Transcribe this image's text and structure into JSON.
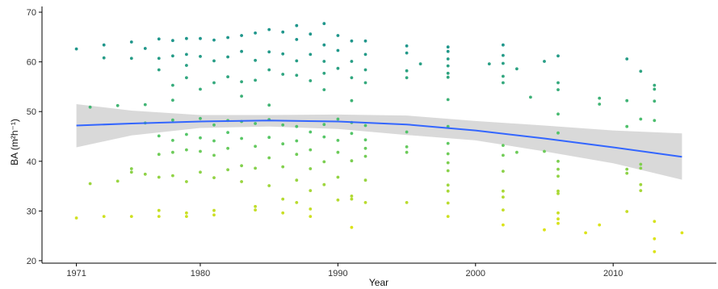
{
  "chart_data": {
    "type": "scatter",
    "title": "",
    "xlabel": "Year",
    "ylabel": "BA (m²h⁻¹)",
    "xlim": [
      1968.5,
      2017.5
    ],
    "ylim": [
      19.5,
      70.5
    ],
    "x_ticks": [
      1971,
      1980,
      1990,
      2000,
      2010
    ],
    "y_ticks": [
      20,
      30,
      40,
      50,
      60,
      70
    ],
    "grid": false,
    "legend": "none",
    "colors": {
      "low": "#dce319",
      "mid": "#55c667",
      "high": "#1f968b",
      "smooth_line": "#3366ff",
      "confidence_band": "#cccccc",
      "axis": "#000000"
    },
    "points": [
      {
        "x": 1971,
        "y": 62.6
      },
      {
        "x": 1971,
        "y": 28.6
      },
      {
        "x": 1972,
        "y": 50.9
      },
      {
        "x": 1972,
        "y": 35.5
      },
      {
        "x": 1973,
        "y": 63.4
      },
      {
        "x": 1973,
        "y": 60.8
      },
      {
        "x": 1973,
        "y": 28.9
      },
      {
        "x": 1974,
        "y": 51.2
      },
      {
        "x": 1974,
        "y": 36.0
      },
      {
        "x": 1975,
        "y": 64.0
      },
      {
        "x": 1975,
        "y": 60.7
      },
      {
        "x": 1975,
        "y": 38.5
      },
      {
        "x": 1975,
        "y": 37.8
      },
      {
        "x": 1975,
        "y": 28.9
      },
      {
        "x": 1976,
        "y": 62.7
      },
      {
        "x": 1976,
        "y": 51.4
      },
      {
        "x": 1976,
        "y": 47.7
      },
      {
        "x": 1976,
        "y": 37.4
      },
      {
        "x": 1977,
        "y": 64.6
      },
      {
        "x": 1977,
        "y": 60.7
      },
      {
        "x": 1977,
        "y": 58.4
      },
      {
        "x": 1977,
        "y": 45.1
      },
      {
        "x": 1977,
        "y": 41.4
      },
      {
        "x": 1977,
        "y": 36.8
      },
      {
        "x": 1977,
        "y": 30.1
      },
      {
        "x": 1977,
        "y": 28.9
      },
      {
        "x": 1978,
        "y": 64.3
      },
      {
        "x": 1978,
        "y": 61.2
      },
      {
        "x": 1978,
        "y": 55.3
      },
      {
        "x": 1978,
        "y": 52.3
      },
      {
        "x": 1978,
        "y": 48.3
      },
      {
        "x": 1978,
        "y": 44.2
      },
      {
        "x": 1978,
        "y": 41.8
      },
      {
        "x": 1978,
        "y": 37.1
      },
      {
        "x": 1979,
        "y": 64.7
      },
      {
        "x": 1979,
        "y": 61.5
      },
      {
        "x": 1979,
        "y": 59.3
      },
      {
        "x": 1979,
        "y": 56.8
      },
      {
        "x": 1979,
        "y": 45.4
      },
      {
        "x": 1979,
        "y": 42.3
      },
      {
        "x": 1979,
        "y": 35.9
      },
      {
        "x": 1979,
        "y": 29.6
      },
      {
        "x": 1979,
        "y": 28.9
      },
      {
        "x": 1980,
        "y": 64.7
      },
      {
        "x": 1980,
        "y": 61.1
      },
      {
        "x": 1980,
        "y": 54.5
      },
      {
        "x": 1980,
        "y": 48.6
      },
      {
        "x": 1980,
        "y": 44.7
      },
      {
        "x": 1980,
        "y": 42.0
      },
      {
        "x": 1980,
        "y": 37.8
      },
      {
        "x": 1981,
        "y": 64.4
      },
      {
        "x": 1981,
        "y": 60.2
      },
      {
        "x": 1981,
        "y": 55.8
      },
      {
        "x": 1981,
        "y": 47.3
      },
      {
        "x": 1981,
        "y": 44.1
      },
      {
        "x": 1981,
        "y": 41.2
      },
      {
        "x": 1981,
        "y": 36.7
      },
      {
        "x": 1981,
        "y": 30.1
      },
      {
        "x": 1981,
        "y": 29.2
      },
      {
        "x": 1982,
        "y": 64.9
      },
      {
        "x": 1982,
        "y": 61.0
      },
      {
        "x": 1982,
        "y": 57.0
      },
      {
        "x": 1982,
        "y": 48.2
      },
      {
        "x": 1982,
        "y": 45.8
      },
      {
        "x": 1982,
        "y": 42.6
      },
      {
        "x": 1982,
        "y": 38.3
      },
      {
        "x": 1983,
        "y": 65.3
      },
      {
        "x": 1983,
        "y": 62.1
      },
      {
        "x": 1983,
        "y": 56.0
      },
      {
        "x": 1983,
        "y": 53.1
      },
      {
        "x": 1983,
        "y": 48.0
      },
      {
        "x": 1983,
        "y": 44.6
      },
      {
        "x": 1983,
        "y": 39.1
      },
      {
        "x": 1983,
        "y": 35.9
      },
      {
        "x": 1984,
        "y": 65.8
      },
      {
        "x": 1984,
        "y": 60.3
      },
      {
        "x": 1984,
        "y": 56.3
      },
      {
        "x": 1984,
        "y": 47.6
      },
      {
        "x": 1984,
        "y": 43.0
      },
      {
        "x": 1984,
        "y": 38.6
      },
      {
        "x": 1984,
        "y": 30.9
      },
      {
        "x": 1984,
        "y": 30.2
      },
      {
        "x": 1985,
        "y": 66.5
      },
      {
        "x": 1985,
        "y": 62.0
      },
      {
        "x": 1985,
        "y": 58.4
      },
      {
        "x": 1985,
        "y": 51.3
      },
      {
        "x": 1985,
        "y": 48.4
      },
      {
        "x": 1985,
        "y": 44.8
      },
      {
        "x": 1985,
        "y": 40.7
      },
      {
        "x": 1985,
        "y": 35.1
      },
      {
        "x": 1986,
        "y": 66.0
      },
      {
        "x": 1986,
        "y": 61.6
      },
      {
        "x": 1986,
        "y": 57.5
      },
      {
        "x": 1986,
        "y": 47.3
      },
      {
        "x": 1986,
        "y": 43.5
      },
      {
        "x": 1986,
        "y": 38.9
      },
      {
        "x": 1986,
        "y": 32.4
      },
      {
        "x": 1986,
        "y": 29.6
      },
      {
        "x": 1987,
        "y": 67.3
      },
      {
        "x": 1987,
        "y": 64.5
      },
      {
        "x": 1987,
        "y": 60.2
      },
      {
        "x": 1987,
        "y": 57.3
      },
      {
        "x": 1987,
        "y": 47.0
      },
      {
        "x": 1987,
        "y": 44.1
      },
      {
        "x": 1987,
        "y": 41.4
      },
      {
        "x": 1987,
        "y": 36.2
      },
      {
        "x": 1987,
        "y": 31.7
      },
      {
        "x": 1988,
        "y": 65.6
      },
      {
        "x": 1988,
        "y": 61.5
      },
      {
        "x": 1988,
        "y": 56.2
      },
      {
        "x": 1988,
        "y": 45.9
      },
      {
        "x": 1988,
        "y": 42.3
      },
      {
        "x": 1988,
        "y": 38.5
      },
      {
        "x": 1988,
        "y": 34.1
      },
      {
        "x": 1988,
        "y": 30.4
      },
      {
        "x": 1988,
        "y": 28.9
      },
      {
        "x": 1989,
        "y": 67.7
      },
      {
        "x": 1989,
        "y": 63.4
      },
      {
        "x": 1989,
        "y": 60.1
      },
      {
        "x": 1989,
        "y": 57.7
      },
      {
        "x": 1989,
        "y": 54.4
      },
      {
        "x": 1989,
        "y": 47.4
      },
      {
        "x": 1989,
        "y": 44.9
      },
      {
        "x": 1989,
        "y": 39.9
      },
      {
        "x": 1989,
        "y": 35.3
      },
      {
        "x": 1990,
        "y": 65.3
      },
      {
        "x": 1990,
        "y": 62.3
      },
      {
        "x": 1990,
        "y": 58.7
      },
      {
        "x": 1990,
        "y": 48.5
      },
      {
        "x": 1990,
        "y": 44.2
      },
      {
        "x": 1990,
        "y": 41.8
      },
      {
        "x": 1990,
        "y": 36.8
      },
      {
        "x": 1990,
        "y": 32.2
      },
      {
        "x": 1991,
        "y": 64.2
      },
      {
        "x": 1991,
        "y": 60.1
      },
      {
        "x": 1991,
        "y": 56.8
      },
      {
        "x": 1991,
        "y": 52.2
      },
      {
        "x": 1991,
        "y": 47.8
      },
      {
        "x": 1991,
        "y": 45.6
      },
      {
        "x": 1991,
        "y": 40.1
      },
      {
        "x": 1991,
        "y": 33.0
      },
      {
        "x": 1991,
        "y": 32.4
      },
      {
        "x": 1991,
        "y": 26.7
      },
      {
        "x": 1992,
        "y": 64.2
      },
      {
        "x": 1992,
        "y": 61.5
      },
      {
        "x": 1992,
        "y": 58.4
      },
      {
        "x": 1992,
        "y": 55.8
      },
      {
        "x": 1992,
        "y": 47.2
      },
      {
        "x": 1992,
        "y": 44.3
      },
      {
        "x": 1992,
        "y": 42.6
      },
      {
        "x": 1992,
        "y": 41.0
      },
      {
        "x": 1992,
        "y": 36.2
      },
      {
        "x": 1992,
        "y": 31.7
      },
      {
        "x": 1995,
        "y": 63.2
      },
      {
        "x": 1995,
        "y": 61.8
      },
      {
        "x": 1995,
        "y": 58.2
      },
      {
        "x": 1995,
        "y": 56.8
      },
      {
        "x": 1995,
        "y": 45.9
      },
      {
        "x": 1995,
        "y": 42.9
      },
      {
        "x": 1995,
        "y": 41.8
      },
      {
        "x": 1995,
        "y": 31.7
      },
      {
        "x": 1996,
        "y": 59.6
      },
      {
        "x": 1998,
        "y": 63.0
      },
      {
        "x": 1998,
        "y": 62.1
      },
      {
        "x": 1998,
        "y": 60.6
      },
      {
        "x": 1998,
        "y": 59.2
      },
      {
        "x": 1998,
        "y": 57.7
      },
      {
        "x": 1998,
        "y": 56.9
      },
      {
        "x": 1998,
        "y": 52.4
      },
      {
        "x": 1998,
        "y": 47.0
      },
      {
        "x": 1998,
        "y": 43.6
      },
      {
        "x": 1998,
        "y": 41.5
      },
      {
        "x": 1998,
        "y": 39.7
      },
      {
        "x": 1998,
        "y": 38.1
      },
      {
        "x": 1998,
        "y": 35.2
      },
      {
        "x": 1998,
        "y": 34.0
      },
      {
        "x": 1998,
        "y": 31.6
      },
      {
        "x": 1998,
        "y": 28.9
      },
      {
        "x": 2001,
        "y": 59.6
      },
      {
        "x": 2002,
        "y": 63.4
      },
      {
        "x": 2002,
        "y": 61.3
      },
      {
        "x": 2002,
        "y": 59.7
      },
      {
        "x": 2002,
        "y": 57.1
      },
      {
        "x": 2002,
        "y": 55.8
      },
      {
        "x": 2002,
        "y": 43.2
      },
      {
        "x": 2002,
        "y": 41.2
      },
      {
        "x": 2002,
        "y": 38.0
      },
      {
        "x": 2002,
        "y": 34.0
      },
      {
        "x": 2002,
        "y": 32.8
      },
      {
        "x": 2002,
        "y": 30.2
      },
      {
        "x": 2002,
        "y": 27.2
      },
      {
        "x": 2003,
        "y": 58.6
      },
      {
        "x": 2003,
        "y": 41.8
      },
      {
        "x": 2004,
        "y": 52.9
      },
      {
        "x": 2005,
        "y": 60.1
      },
      {
        "x": 2005,
        "y": 42.0
      },
      {
        "x": 2005,
        "y": 26.2
      },
      {
        "x": 2006,
        "y": 61.2
      },
      {
        "x": 2006,
        "y": 55.8
      },
      {
        "x": 2006,
        "y": 54.4
      },
      {
        "x": 2006,
        "y": 49.5
      },
      {
        "x": 2006,
        "y": 45.7
      },
      {
        "x": 2006,
        "y": 40.0
      },
      {
        "x": 2006,
        "y": 38.4
      },
      {
        "x": 2006,
        "y": 37.0
      },
      {
        "x": 2006,
        "y": 34.0
      },
      {
        "x": 2006,
        "y": 33.5
      },
      {
        "x": 2006,
        "y": 29.6
      },
      {
        "x": 2006,
        "y": 28.4
      },
      {
        "x": 2006,
        "y": 27.5
      },
      {
        "x": 2008,
        "y": 25.6
      },
      {
        "x": 2009,
        "y": 52.7
      },
      {
        "x": 2009,
        "y": 51.5
      },
      {
        "x": 2009,
        "y": 27.2
      },
      {
        "x": 2011,
        "y": 60.6
      },
      {
        "x": 2011,
        "y": 52.2
      },
      {
        "x": 2011,
        "y": 47.0
      },
      {
        "x": 2011,
        "y": 38.4
      },
      {
        "x": 2011,
        "y": 37.6
      },
      {
        "x": 2011,
        "y": 29.9
      },
      {
        "x": 2012,
        "y": 58.1
      },
      {
        "x": 2012,
        "y": 48.5
      },
      {
        "x": 2012,
        "y": 39.4
      },
      {
        "x": 2012,
        "y": 38.6
      },
      {
        "x": 2012,
        "y": 35.3
      },
      {
        "x": 2012,
        "y": 34.1
      },
      {
        "x": 2013,
        "y": 55.3
      },
      {
        "x": 2013,
        "y": 54.5
      },
      {
        "x": 2013,
        "y": 52.1
      },
      {
        "x": 2013,
        "y": 48.2
      },
      {
        "x": 2013,
        "y": 27.9
      },
      {
        "x": 2013,
        "y": 24.4
      },
      {
        "x": 2013,
        "y": 21.8
      },
      {
        "x": 2015,
        "y": 25.6
      }
    ],
    "smooth_fit": {
      "method": "loess",
      "x": [
        1971,
        1975,
        1980,
        1985,
        1990,
        1995,
        2000,
        2005,
        2010,
        2015
      ],
      "y": [
        47.2,
        47.6,
        48.0,
        48.2,
        48.0,
        47.4,
        46.2,
        44.6,
        42.8,
        40.9
      ],
      "y_lower": [
        42.8,
        45.2,
        46.7,
        47.0,
        46.5,
        45.3,
        44.2,
        42.0,
        39.6,
        36.3
      ],
      "y_upper": [
        51.5,
        50.2,
        49.3,
        49.3,
        49.4,
        49.2,
        48.1,
        47.2,
        46.2,
        45.6
      ]
    }
  }
}
